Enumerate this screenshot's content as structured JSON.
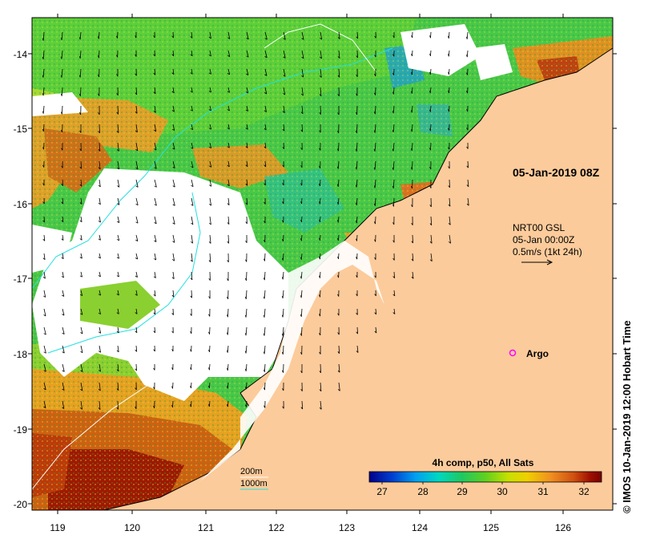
{
  "map": {
    "lon_ticks": [
      "119",
      "120",
      "121",
      "122",
      "123",
      "124",
      "125",
      "126"
    ],
    "lat_ticks": [
      "-14",
      "-15",
      "-16",
      "-17",
      "-18",
      "-19",
      "-20"
    ],
    "land_color": "#fccb9b",
    "no_data_color": "#ffffff"
  },
  "annotations": {
    "pass_time": "05-Jan-2019 08Z",
    "current_source": "NRT00 GSL",
    "current_time": "05-Jan 00:00Z",
    "current_scale": "0.5m/s (1kt 24h)",
    "argo_label": "Argo",
    "argo_color": "#ff00ff"
  },
  "legend": {
    "isobath_200": "200m",
    "isobath_1000": "1000m",
    "isobath_200_color": "#ffffff",
    "isobath_1000_color": "#22e0e0"
  },
  "colorbar": {
    "title": "4h comp, p50, All Sats",
    "ticks": [
      "27",
      "28",
      "29",
      "30",
      "31",
      "32"
    ],
    "colors": [
      "#00008a",
      "#0040d0",
      "#00a0f0",
      "#00d8c0",
      "#20c860",
      "#60d020",
      "#c8e000",
      "#f0d000",
      "#f09020",
      "#d05010",
      "#a01000",
      "#780000"
    ]
  },
  "credit": "© IMOS 10-Jan-2019 12:00 Hobart Time"
}
